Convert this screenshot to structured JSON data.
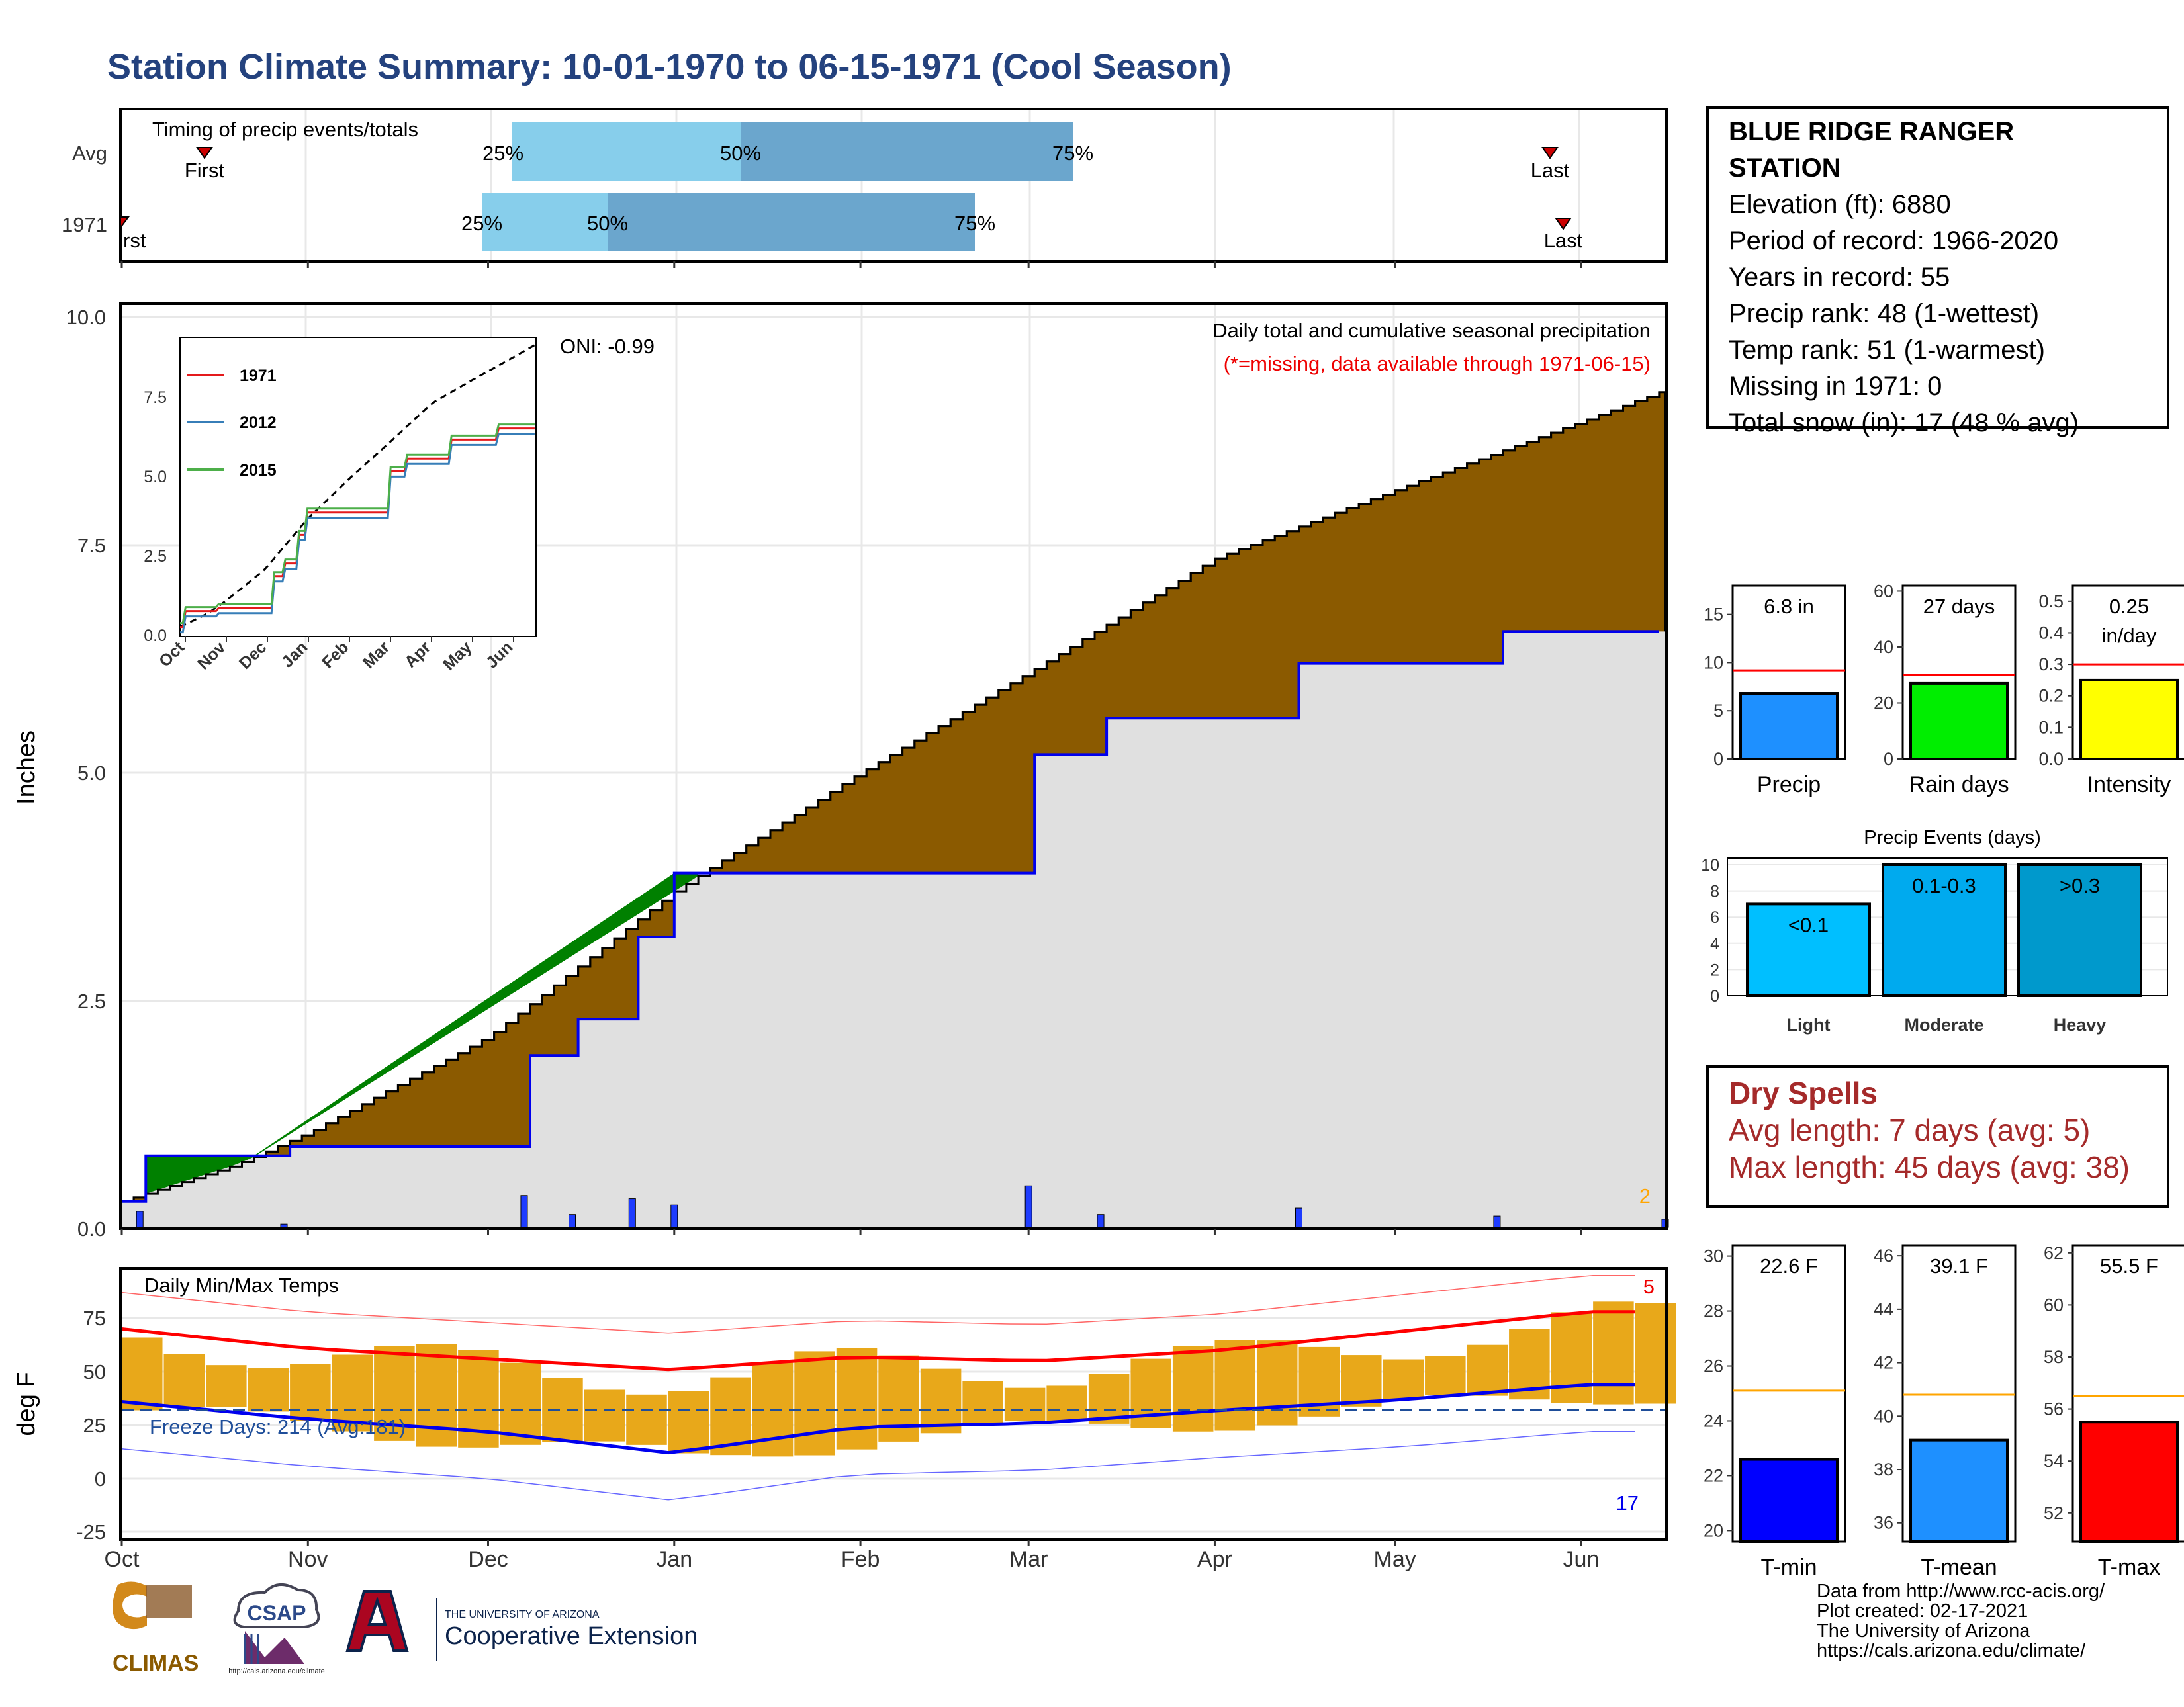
{
  "title": "Station Climate Summary: 10-01-1970 to 06-15-1971 (Cool Season)",
  "colors": {
    "title": "#24427e",
    "cumulative_avg_fill": "#8b5a00",
    "cumulative_1971_fill": "#e0e0e0",
    "ahead_fill": "#008000",
    "daily_bars": "#1e3cff",
    "temp_bars": "#e8a81a",
    "max_line": "#ff0000",
    "min_line": "#0000ee",
    "dry_spells": "#a52a2a"
  },
  "timing": {
    "title": "Timing of precip events/totals",
    "rows": [
      "Avg",
      "1971"
    ],
    "avg": {
      "first": "First",
      "last": "Last",
      "q25": "25%",
      "q50": "50%",
      "q75": "75%"
    },
    "y1971": {
      "first": "rst",
      "last": "Last",
      "q25": "25%",
      "q50": "50%",
      "q75": "75%"
    }
  },
  "precip_panel": {
    "ylabel": "Inches",
    "yticks": [
      "0.0",
      "2.5",
      "5.0",
      "7.5",
      "10.0"
    ],
    "note1": "Daily total and cumulative seasonal precipitation",
    "note2": "(*=missing, data available through 1971-06-15)",
    "oni": "ONI: -0.99",
    "corner_count": "2"
  },
  "inset": {
    "legend": [
      "1971",
      "2012",
      "2015"
    ],
    "legend_colors": [
      "#e41a1c",
      "#377eb8",
      "#4daf4a"
    ],
    "yticks": [
      "0.0",
      "2.5",
      "5.0",
      "7.5"
    ],
    "xticks": [
      "Oct",
      "Nov",
      "Dec",
      "Jan",
      "Feb",
      "Mar",
      "Apr",
      "May",
      "Jun"
    ]
  },
  "temp_panel": {
    "ylabel": "deg F",
    "title": "Daily Min/Max Temps",
    "freeze": "Freeze Days: 214 (Avg:181)",
    "yticks": [
      "-25",
      "0",
      "25",
      "50",
      "75"
    ],
    "count_max": "5",
    "count_min": "17"
  },
  "month_ticks": [
    "Oct",
    "Nov",
    "Dec",
    "Jan",
    "Feb",
    "Mar",
    "Apr",
    "May",
    "Jun"
  ],
  "station": {
    "name_line1": "BLUE RIDGE RANGER",
    "name_line2": "STATION",
    "elevation": "Elevation (ft): 6880",
    "period": "Period of record: 1966-2020",
    "years": "Years in record: 55",
    "precip_rank": "Precip rank: 48 (1-wettest)",
    "temp_rank": "Temp rank: 51 (1-warmest)",
    "missing": "Missing in 1971: 0",
    "snow": "Total snow (in): 17 (48 % avg)"
  },
  "small_bars": {
    "precip": {
      "label": "Precip",
      "value_text": "6.8 in",
      "yticks": [
        "0",
        "5",
        "10",
        "15"
      ]
    },
    "rain_days": {
      "label": "Rain days",
      "value_text": "27 days",
      "yticks": [
        "0",
        "20",
        "40",
        "60"
      ]
    },
    "intensity": {
      "label": "Intensity",
      "value_text_1": "0.25",
      "value_text_2": "in/day",
      "yticks": [
        "0.0",
        "0.1",
        "0.2",
        "0.3",
        "0.4",
        "0.5"
      ]
    }
  },
  "events": {
    "title": "Precip Events (days)",
    "yticks": [
      "0",
      "2",
      "4",
      "6",
      "8",
      "10"
    ],
    "categories": [
      "Light",
      "Moderate",
      "Heavy"
    ],
    "bar_labels": [
      "<0.1",
      "0.1-0.3",
      ">0.3"
    ]
  },
  "dry_spells": {
    "title": "Dry Spells",
    "avg": "Avg length: 7 days (avg: 5)",
    "max": "Max length: 45 days (avg: 38)"
  },
  "temp_bars": {
    "tmin": {
      "label": "T-min",
      "value_text": "22.6 F",
      "yticks": [
        "20",
        "22",
        "24",
        "26",
        "28",
        "30"
      ]
    },
    "tmean": {
      "label": "T-mean",
      "value_text": "39.1 F",
      "yticks": [
        "36",
        "38",
        "40",
        "42",
        "44",
        "46"
      ]
    },
    "tmax": {
      "label": "T-max",
      "value_text": "55.5 F",
      "yticks": [
        "52",
        "54",
        "56",
        "58",
        "60",
        "62"
      ]
    }
  },
  "credits": {
    "line1": "Data from http://www.rcc-acis.org/",
    "line2": "Plot created: 02-17-2021",
    "line3": "The University of Arizona",
    "line4": "https://cals.arizona.edu/climate/"
  },
  "logos": {
    "climas": "CLIMAS",
    "csap": "CSAP",
    "csap_url": "http://cals.arizona.edu/climate",
    "ua_small": "THE UNIVERSITY OF ARIZONA",
    "ua_big": "Cooperative Extension"
  },
  "chart_data": [
    {
      "type": "area",
      "title": "Daily total and cumulative seasonal precipitation",
      "ylabel": "Inches",
      "ylim": [
        0,
        10
      ],
      "x_range": [
        "1970-10-01",
        "1971-06-15"
      ],
      "series": [
        {
          "name": "",
          "x": [
            "1970-10-01",
            "1970-10-20",
            "1970-11-01",
            "1970-12-01",
            "1971-01-01",
            "1971-02-01",
            "1971-03-01",
            "1971-04-01",
            "1971-05-01",
            "1971-06-01",
            "1971-06-15"
          ],
          "values": [
            0.3,
            0.7,
            1.05,
            2.1,
            3.7,
            5.0,
            6.1,
            7.35,
            8.1,
            8.85,
            9.2
          ]
        },
        {
          "name": "1971",
          "x": [
            "1970-10-01",
            "1970-10-04",
            "1970-10-28",
            "1970-12-01",
            "1970-12-07",
            "1970-12-15",
            "1970-12-25",
            "1971-01-01",
            "1971-02-18",
            "1971-03-01",
            "1971-03-13",
            "1971-04-15",
            "1971-05-18",
            "1971-06-15"
          ],
          "values": [
            0.3,
            0.8,
            0.9,
            0.9,
            1.9,
            2.3,
            3.2,
            3.9,
            3.9,
            5.2,
            5.6,
            6.2,
            6.55,
            6.8
          ]
        }
      ]
    },
    {
      "type": "bar",
      "title": "Daily Min/Max Temps",
      "ylabel": "deg F",
      "ylim": [
        -27,
        93
      ],
      "series": [
        {
          "name": "Tmax",
          "x": [
            "Oct",
            "Nov",
            "Dec",
            "Jan",
            "Feb",
            "Mar",
            "Apr",
            "May",
            "Jun"
          ],
          "values": [
            66,
            57,
            52,
            47,
            53,
            51,
            56,
            65,
            74
          ]
        },
        {
          "name": "Tmin",
          "x": [
            "Oct",
            "Nov",
            "Dec",
            "Jan",
            "Feb",
            "Mar",
            "Apr",
            "May",
            "Jun"
          ],
          "values": [
            32,
            24,
            18,
            8,
            20,
            22,
            28,
            33,
            40
          ]
        }
      ]
    },
    {
      "type": "bar",
      "title": "Precip Events (days)",
      "categories": [
        "Light",
        "Moderate",
        "Heavy"
      ],
      "values": [
        7,
        10,
        10
      ],
      "ylim": [
        0,
        10
      ]
    },
    {
      "type": "bar",
      "categories": [
        "Precip",
        "Rain days",
        "Intensity"
      ],
      "series": [
        {
          "name": "1971",
          "values": [
            6.8,
            27,
            0.25
          ]
        },
        {
          "name": "avg",
          "values": [
            9.2,
            30,
            0.3
          ]
        }
      ]
    },
    {
      "type": "bar",
      "categories": [
        "T-min",
        "T-mean",
        "T-max"
      ],
      "series": [
        {
          "name": "1971",
          "values": [
            22.6,
            39.1,
            55.5
          ]
        },
        {
          "name": "avg",
          "values": [
            25.1,
            40.8,
            56.5
          ]
        }
      ]
    }
  ]
}
